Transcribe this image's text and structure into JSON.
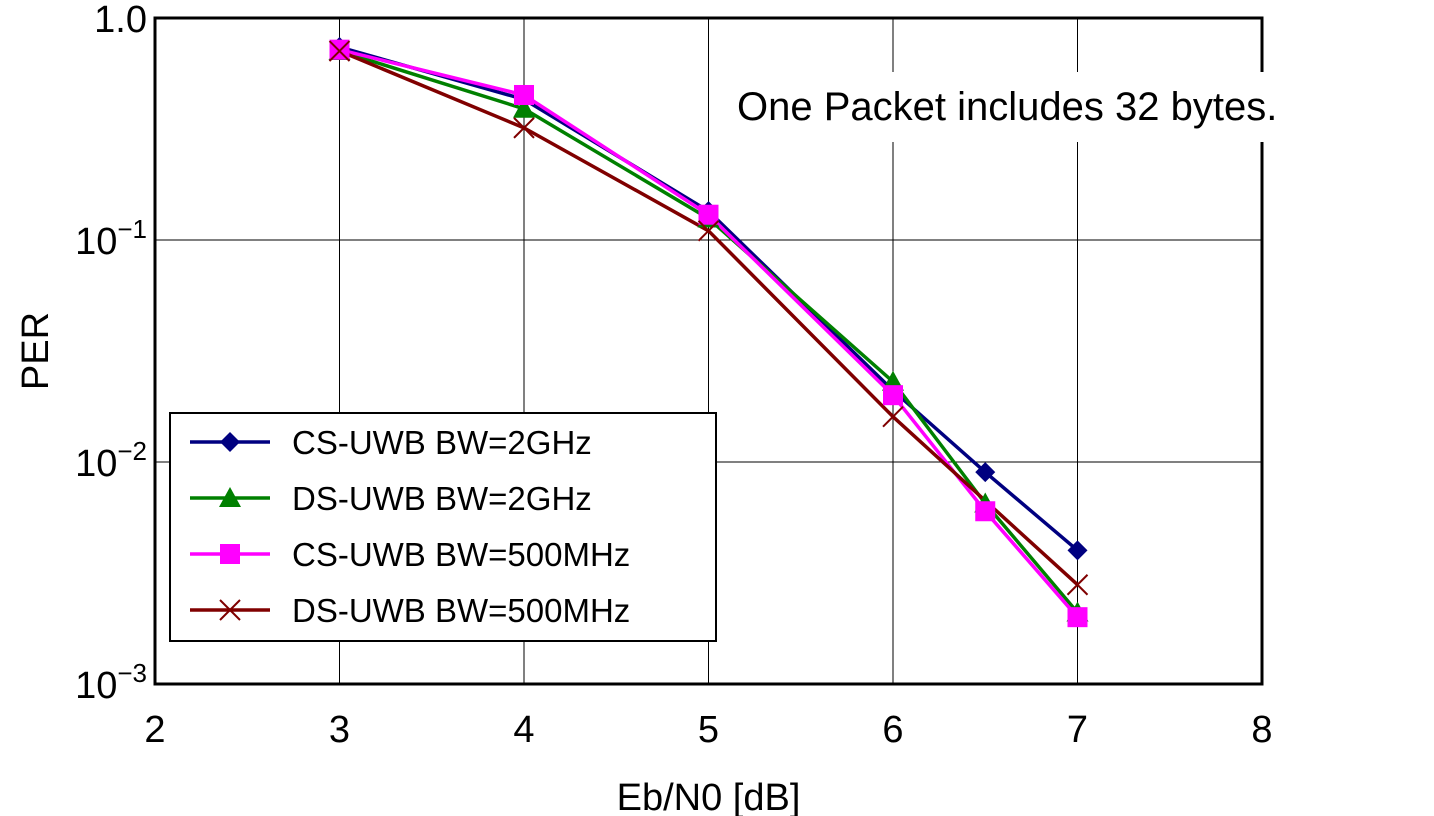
{
  "chart_data": {
    "type": "line",
    "title": "",
    "xlabel": "Eb/N0 [dB]",
    "ylabel": "PER",
    "xlim": [
      2,
      8
    ],
    "ylim": [
      0.001,
      1.0
    ],
    "yscale": "log",
    "grid": true,
    "x_ticks": [
      2,
      3,
      4,
      5,
      6,
      7,
      8
    ],
    "x_tick_labels": [
      "2",
      "3",
      "4",
      "5",
      "6",
      "7",
      "8"
    ],
    "y_ticks": [
      {
        "value": 1.0,
        "label": "1.0",
        "base": "",
        "exp": ""
      },
      {
        "value": 0.1,
        "label": "",
        "base": "10",
        "exp": "−1"
      },
      {
        "value": 0.01,
        "label": "",
        "base": "10",
        "exp": "−2"
      },
      {
        "value": 0.001,
        "label": "",
        "base": "10",
        "exp": "−3"
      }
    ],
    "legend_position": "bottom-left",
    "annotation": "One Packet includes 32 bytes.",
    "series": [
      {
        "name": "CS-UWB BW=2GHz",
        "color": "#000080",
        "marker": "diamond",
        "x": [
          3,
          4,
          5,
          6,
          6.5,
          7
        ],
        "y": [
          0.74,
          0.43,
          0.135,
          0.021,
          0.009,
          0.004
        ]
      },
      {
        "name": "DS-UWB BW=2GHz",
        "color": "#008000",
        "marker": "triangle",
        "x": [
          3,
          4,
          5,
          6,
          6.5,
          7
        ],
        "y": [
          0.71,
          0.39,
          0.125,
          0.023,
          0.0065,
          0.0021
        ]
      },
      {
        "name": "CS-UWB BW=500MHz",
        "color": "#ff00ff",
        "marker": "square",
        "x": [
          3,
          4,
          5,
          6,
          6.5,
          7
        ],
        "y": [
          0.72,
          0.45,
          0.13,
          0.02,
          0.006,
          0.002
        ]
      },
      {
        "name": "DS-UWB BW=500MHz",
        "color": "#800000",
        "marker": "x",
        "x": [
          3,
          4,
          5,
          6,
          7
        ],
        "y": [
          0.71,
          0.32,
          0.11,
          0.016,
          0.0028
        ]
      }
    ]
  }
}
